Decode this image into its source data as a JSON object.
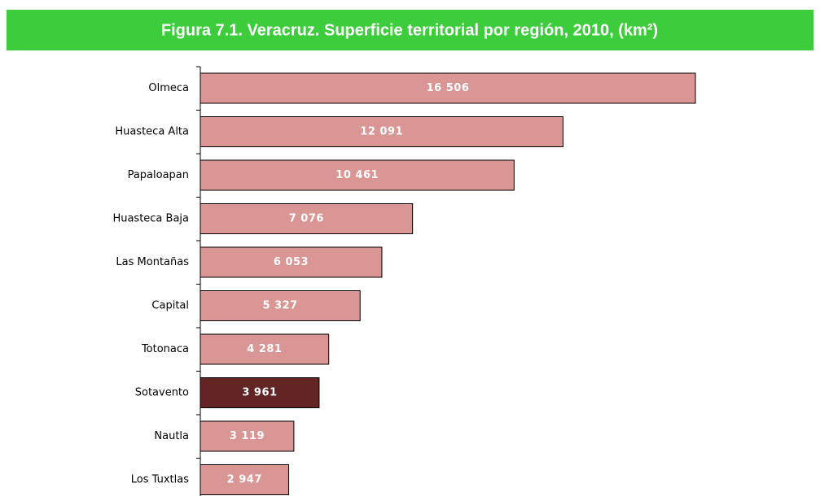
{
  "chart_data": {
    "type": "bar",
    "orientation": "horizontal",
    "title": "Figura 7.1. Veracruz. Superficie territorial por región, 2010, (km²)",
    "categories": [
      "Olmeca",
      "Huasteca Alta",
      "Papaloapan",
      "Huasteca Baja",
      "Las Montañas",
      "Capital",
      "Totonaca",
      "Sotavento",
      "Nautla",
      "Los Tuxtlas"
    ],
    "values": [
      16506,
      12091,
      10461,
      7076,
      6053,
      5327,
      4281,
      3961,
      3119,
      2947
    ],
    "value_labels": [
      "16 506",
      "12 091",
      "10 461",
      "7 076",
      "6 053",
      "5 327",
      "4 281",
      "3 961",
      "3 119",
      "2 947"
    ],
    "colors": [
      "#d99694",
      "#d99694",
      "#d99694",
      "#d99694",
      "#d99694",
      "#d99694",
      "#d99694",
      "#632523",
      "#d99694",
      "#d99694"
    ]
  }
}
